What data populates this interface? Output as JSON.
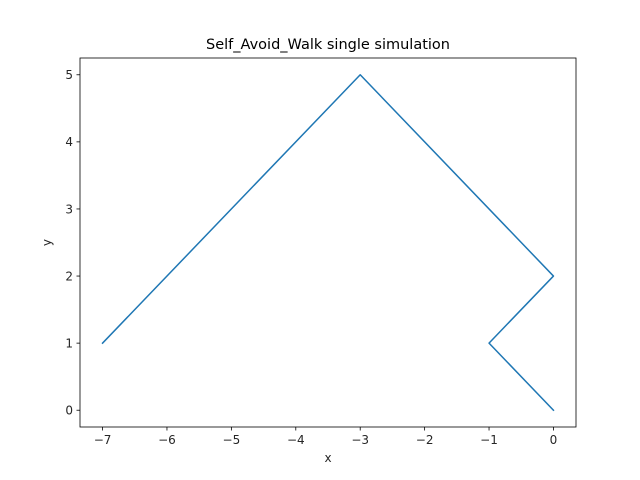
{
  "chart_data": {
    "type": "line",
    "title": "Self_Avoid_Walk single simulation",
    "xlabel": "x",
    "ylabel": "y",
    "xlim": [
      -7.35,
      0.35
    ],
    "ylim": [
      -0.25,
      5.25
    ],
    "xticks": [
      -7,
      -6,
      -5,
      -4,
      -3,
      -2,
      -1,
      0
    ],
    "xtick_labels": [
      "−7",
      "−6",
      "−5",
      "−4",
      "−3",
      "−2",
      "−1",
      "0"
    ],
    "yticks": [
      0,
      1,
      2,
      3,
      4,
      5
    ],
    "ytick_labels": [
      "0",
      "1",
      "2",
      "3",
      "4",
      "5"
    ],
    "grid": false,
    "series": [
      {
        "color": "#1f77b4",
        "x": [
          0,
          -1,
          0,
          -3,
          -7
        ],
        "y": [
          0,
          1,
          2,
          5,
          1
        ]
      }
    ]
  }
}
